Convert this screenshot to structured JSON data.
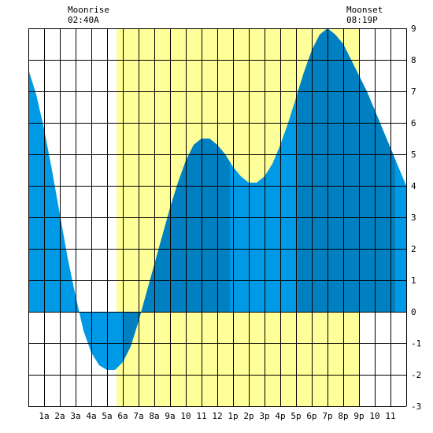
{
  "header": {
    "moonrise_label": "Moonrise",
    "moonrise_time": "02:40A",
    "moonset_label": "Moonset",
    "moonset_time": "08:19P"
  },
  "chart_data": {
    "type": "area",
    "title": "",
    "xlabel": "",
    "ylabel": "",
    "x_tick_labels": [
      "1a",
      "2a",
      "3a",
      "4a",
      "5a",
      "6a",
      "7a",
      "8a",
      "9a",
      "10",
      "11",
      "12",
      "1p",
      "2p",
      "3p",
      "4p",
      "5p",
      "6p",
      "7p",
      "8p",
      "9p",
      "10",
      "11"
    ],
    "y_ticks": [
      -3,
      -2,
      -1,
      0,
      1,
      2,
      3,
      4,
      5,
      6,
      7,
      8,
      9
    ],
    "xlim": [
      0,
      24
    ],
    "ylim": [
      -3,
      9
    ],
    "grid": true,
    "daylight_hours": [
      5.6,
      21.0
    ],
    "colors": {
      "daylight": "#ffff99",
      "tide_light": "#0099e6",
      "tide_dark": "#0080c0",
      "grid": "#000000"
    },
    "dark_bands_hours": [
      [
        6.0,
        8.0
      ],
      [
        8.0,
        12.8
      ],
      [
        17.1,
        23.3
      ]
    ],
    "series": [
      {
        "x": [
          0,
          0.5,
          1,
          1.5,
          2,
          2.5,
          3,
          3.5,
          4,
          4.5,
          5,
          5.5,
          6,
          6.5,
          7,
          7.5,
          8,
          8.5,
          9,
          9.5,
          10,
          10.5,
          11,
          11.5,
          12,
          12.5,
          13,
          13.5,
          14,
          14.5,
          15,
          15.5,
          16,
          16.5,
          17,
          17.5,
          18,
          18.5,
          19,
          19.5,
          20,
          20.5,
          21,
          21.5,
          22,
          22.5,
          23,
          23.5,
          24
        ],
        "values": [
          7.7,
          6.9,
          5.8,
          4.5,
          3.1,
          1.7,
          0.5,
          -0.6,
          -1.3,
          -1.7,
          -1.85,
          -1.85,
          -1.6,
          -1.1,
          -0.3,
          0.6,
          1.5,
          2.4,
          3.3,
          4.1,
          4.8,
          5.3,
          5.5,
          5.5,
          5.3,
          5.0,
          4.6,
          4.3,
          4.1,
          4.1,
          4.3,
          4.7,
          5.3,
          6.0,
          6.8,
          7.6,
          8.3,
          8.8,
          9.0,
          8.8,
          8.5,
          8.0,
          7.5,
          7.0,
          6.4,
          5.8,
          5.2,
          4.6,
          4.0
        ]
      }
    ]
  }
}
